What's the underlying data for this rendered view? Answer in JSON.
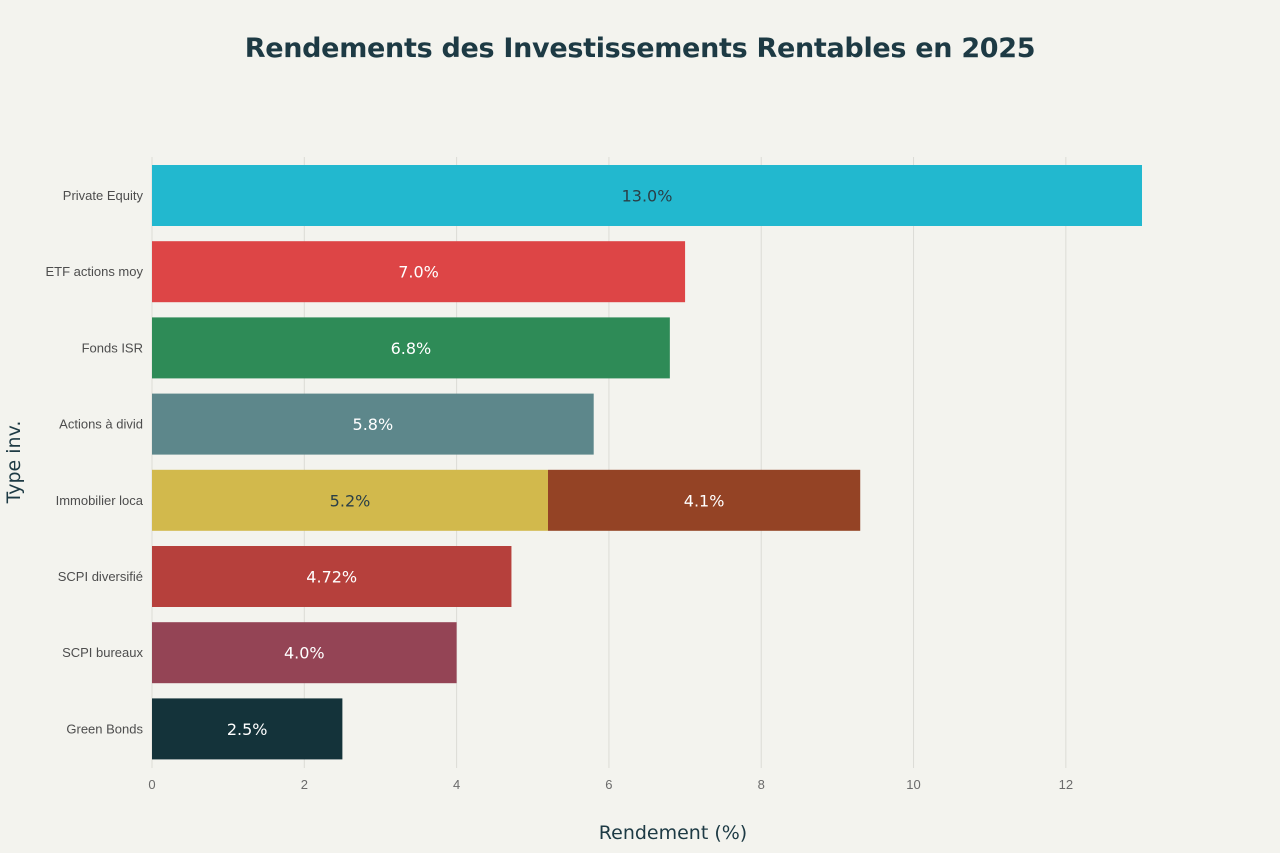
{
  "chart_data": {
    "type": "bar",
    "orientation": "horizontal",
    "barmode": "stack",
    "title": "Rendements des Investissements Rentables en 2025",
    "xlabel": "Rendement (%)",
    "ylabel": "Type inv.",
    "xlim": [
      0,
      13.6
    ],
    "xticks": [
      0,
      2,
      4,
      6,
      8,
      10,
      12
    ],
    "grid": true,
    "legend": "none",
    "categories": [
      "Private Equity",
      "ETF actions moy",
      "Fonds ISR",
      "Actions à divid",
      "Immobilier loca",
      "SCPI diversifié",
      "SCPI bureaux",
      "Green Bonds"
    ],
    "bars": [
      {
        "category": "Private Equity",
        "segments": [
          {
            "value": 13.0,
            "label": "13.0%",
            "color": "#22b8cf",
            "label_color": "#2a3f47"
          }
        ]
      },
      {
        "category": "ETF actions moy",
        "segments": [
          {
            "value": 7.0,
            "label": "7.0%",
            "color": "#dd4546",
            "label_color": "#ffffff"
          }
        ]
      },
      {
        "category": "Fonds ISR",
        "segments": [
          {
            "value": 6.8,
            "label": "6.8%",
            "color": "#2e8b57",
            "label_color": "#ffffff"
          }
        ]
      },
      {
        "category": "Actions à divid",
        "segments": [
          {
            "value": 5.8,
            "label": "5.8%",
            "color": "#5d878b",
            "label_color": "#ffffff"
          }
        ]
      },
      {
        "category": "Immobilier loca",
        "segments": [
          {
            "value": 5.2,
            "label": "5.2%",
            "color": "#d2b94c",
            "label_color": "#2a3f47"
          },
          {
            "value": 4.1,
            "label": "4.1%",
            "color": "#944325",
            "label_color": "#ffffff"
          }
        ]
      },
      {
        "category": "SCPI diversifié",
        "segments": [
          {
            "value": 4.72,
            "label": "4.72%",
            "color": "#b6403c",
            "label_color": "#ffffff"
          }
        ]
      },
      {
        "category": "SCPI bureaux",
        "segments": [
          {
            "value": 4.0,
            "label": "4.0%",
            "color": "#944455",
            "label_color": "#ffffff"
          }
        ]
      },
      {
        "category": "Green Bonds",
        "segments": [
          {
            "value": 2.5,
            "label": "2.5%",
            "color": "#14333a",
            "label_color": "#ffffff"
          }
        ]
      }
    ]
  }
}
